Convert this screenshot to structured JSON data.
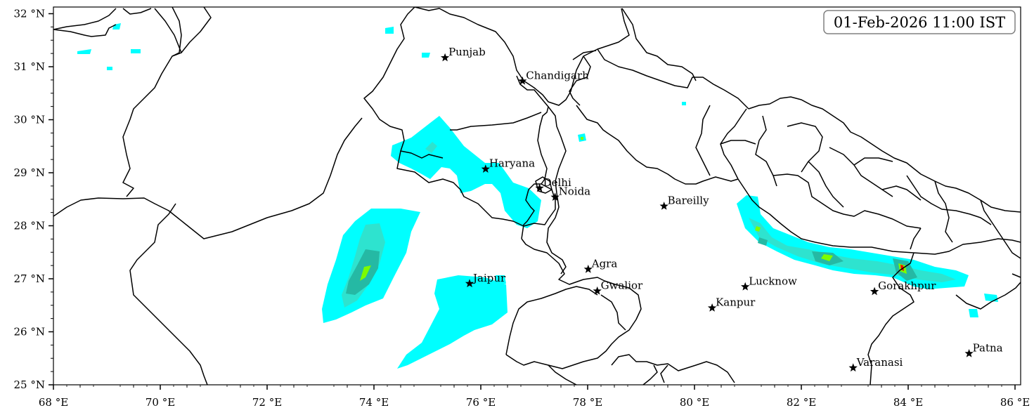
{
  "map": {
    "lon_range": [
      68,
      86.2
    ],
    "lat_range": [
      25,
      32.1
    ],
    "x_ticks": [
      {
        "value": 68,
        "label": "68 °E"
      },
      {
        "value": 70,
        "label": "70 °E"
      },
      {
        "value": 72,
        "label": "72 °E"
      },
      {
        "value": 74,
        "label": "74 °E"
      },
      {
        "value": 76,
        "label": "76 °E"
      },
      {
        "value": 78,
        "label": "78 °E"
      },
      {
        "value": 80,
        "label": "80 °E"
      },
      {
        "value": 82,
        "label": "82 °E"
      },
      {
        "value": 84,
        "label": "84 °E"
      },
      {
        "value": 86,
        "label": "86 °E"
      }
    ],
    "y_ticks": [
      {
        "value": 25,
        "label": "25 °N"
      },
      {
        "value": 26,
        "label": "26 °N"
      },
      {
        "value": 27,
        "label": "27 °N"
      },
      {
        "value": 28,
        "label": "28 °N"
      },
      {
        "value": 29,
        "label": "29 °N"
      },
      {
        "value": 30,
        "label": "30 °N"
      },
      {
        "value": 31,
        "label": "31 °N"
      },
      {
        "value": 32,
        "label": "32 °N"
      }
    ],
    "timestamp": "01-Feb-2026 11:00 IST",
    "cities": [
      {
        "name": "Punjab",
        "lon": 75.33,
        "lat": 31.17
      },
      {
        "name": "Chandigarh",
        "lon": 76.78,
        "lat": 30.73
      },
      {
        "name": "Haryana",
        "lon": 76.09,
        "lat": 29.07
      },
      {
        "name": "Delhi",
        "lon": 77.1,
        "lat": 28.71
      },
      {
        "name": "Noida",
        "lon": 77.39,
        "lat": 28.54
      },
      {
        "name": "Bareilly",
        "lon": 79.43,
        "lat": 28.37
      },
      {
        "name": "Jaipur",
        "lon": 75.79,
        "lat": 26.91
      },
      {
        "name": "Agra",
        "lon": 78.01,
        "lat": 27.18
      },
      {
        "name": "Gwalior",
        "lon": 78.18,
        "lat": 26.77
      },
      {
        "name": "Lucknow",
        "lon": 80.95,
        "lat": 26.85
      },
      {
        "name": "Kanpur",
        "lon": 80.33,
        "lat": 26.45
      },
      {
        "name": "Gorakhpur",
        "lon": 83.37,
        "lat": 26.76
      },
      {
        "name": "Varanasi",
        "lon": 82.97,
        "lat": 25.32
      },
      {
        "name": "Patna",
        "lon": 85.14,
        "lat": 25.59
      }
    ],
    "colors": {
      "level1": "#00ffff",
      "level2": "#2ee3cf",
      "level3": "#25b9a4",
      "level4": "#7cfc00",
      "level5": "#ff0000",
      "boundary": "#000000"
    }
  }
}
